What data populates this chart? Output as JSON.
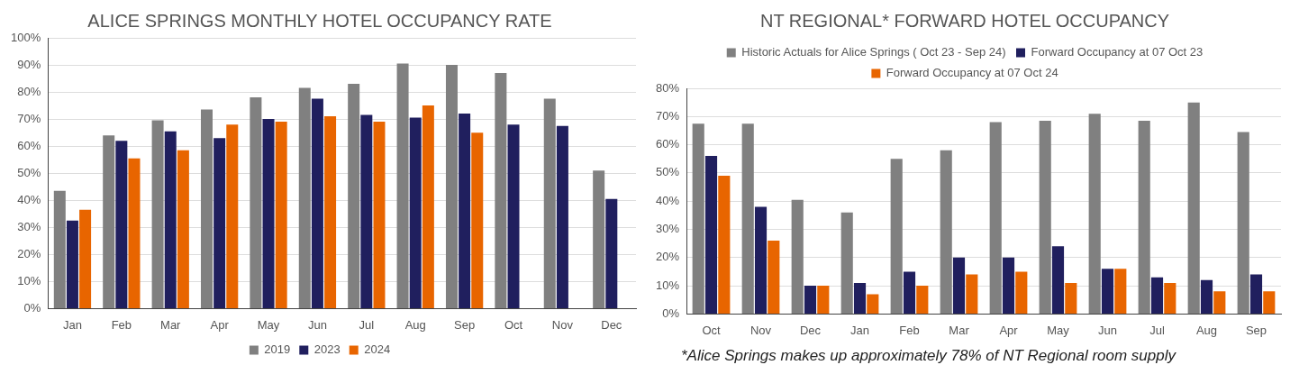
{
  "chart_data": [
    {
      "type": "bar",
      "title": "ALICE SPRINGS MONTHLY HOTEL OCCUPANCY RATE",
      "categories": [
        "Jan",
        "Feb",
        "Mar",
        "Apr",
        "May",
        "Jun",
        "Jul",
        "Aug",
        "Sep",
        "Oct",
        "Nov",
        "Dec"
      ],
      "series": [
        {
          "name": "2019",
          "color": "#808080",
          "values": [
            43.5,
            64,
            69.5,
            73.5,
            78,
            81.5,
            83,
            90.5,
            90,
            87,
            77.5,
            51
          ]
        },
        {
          "name": "2023",
          "color": "#201f5e",
          "values": [
            32.5,
            62,
            65.5,
            63,
            70,
            77.5,
            71.5,
            70.5,
            72,
            68,
            67.5,
            40.5
          ]
        },
        {
          "name": "2024",
          "color": "#e86500",
          "values": [
            36.5,
            55.5,
            58.5,
            68,
            69,
            71,
            69,
            75,
            65,
            null,
            null,
            null
          ]
        }
      ],
      "ylim": [
        0,
        100
      ],
      "yticks": [
        {
          "value": 0,
          "label": "0%"
        },
        {
          "value": 10,
          "label": "10%"
        },
        {
          "value": 20,
          "label": "20%"
        },
        {
          "value": 30,
          "label": "30%"
        },
        {
          "value": 40,
          "label": "40%"
        },
        {
          "value": 50,
          "label": "50%"
        },
        {
          "value": 60,
          "label": "60%"
        },
        {
          "value": 70,
          "label": "70%"
        },
        {
          "value": 80,
          "label": "80%"
        },
        {
          "value": 90,
          "label": "90%"
        },
        {
          "value": 100,
          "label": "100%"
        }
      ],
      "grid": "y",
      "legend": "bottom"
    },
    {
      "type": "bar",
      "title": "NT REGIONAL* FORWARD HOTEL OCCUPANCY",
      "categories": [
        "Oct",
        "Nov",
        "Dec",
        "Jan",
        "Feb",
        "Mar",
        "Apr",
        "May",
        "Jun",
        "Jul",
        "Aug",
        "Sep"
      ],
      "series": [
        {
          "name": "Historic Actuals for Alice Springs ( Oct 23 - Sep 24)",
          "color": "#808080",
          "values": [
            67.5,
            67.5,
            40.5,
            36,
            55,
            58,
            68,
            68.5,
            71,
            68.5,
            75,
            64.5
          ]
        },
        {
          "name": "Forward Occupancy at 07 Oct 23",
          "color": "#201f5e",
          "values": [
            56,
            38,
            10,
            11,
            15,
            20,
            20,
            24,
            16,
            13,
            12,
            14
          ]
        },
        {
          "name": "Forward Occupancy at 07 Oct 24",
          "color": "#e86500",
          "values": [
            49,
            26,
            10,
            7,
            10,
            14,
            15,
            11,
            16,
            11,
            8,
            8
          ]
        }
      ],
      "ylim": [
        0,
        80
      ],
      "yticks": [
        {
          "value": 0,
          "label": "0%"
        },
        {
          "value": 10,
          "label": "10%"
        },
        {
          "value": 20,
          "label": "20%"
        },
        {
          "value": 30,
          "label": "30%"
        },
        {
          "value": 40,
          "label": "40%"
        },
        {
          "value": 50,
          "label": "50%"
        },
        {
          "value": 60,
          "label": "60%"
        },
        {
          "value": 70,
          "label": "70%"
        },
        {
          "value": 80,
          "label": "80%"
        }
      ],
      "grid": "y",
      "legend": "top",
      "annotations": [
        "*Alice Springs makes up approximately 78% of NT Regional room supply"
      ]
    }
  ]
}
